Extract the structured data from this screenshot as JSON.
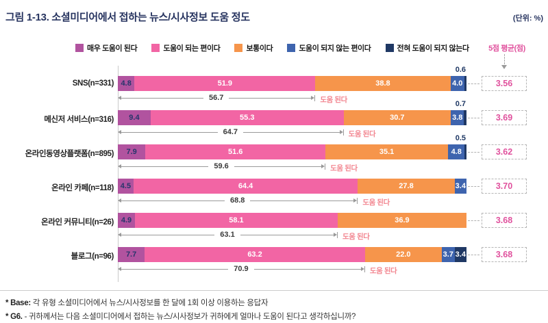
{
  "title": "그림 1-13. 소셜미디어에서 접하는 뉴스/시사정보 도움 정도",
  "unit_label": "(단위: %)",
  "avg_header": "5점 평균(점)",
  "helped_label": "도움 된다",
  "colors": {
    "very_helpful": "#B1539F",
    "helpful": "#F265A4",
    "neutral": "#F6954B",
    "not_helpful": "#3E64AE",
    "not_at_all": "#1F3864",
    "avg_text": "#E0519D",
    "title_navy": "#26335F",
    "helped_label": "#F2858F"
  },
  "legend": [
    {
      "label": "매우 도움이 된다",
      "color": "#B1539F"
    },
    {
      "label": "도움이 되는 편이다",
      "color": "#F265A4"
    },
    {
      "label": "보통이다",
      "color": "#F6954B"
    },
    {
      "label": "도움이 되지 않는 편이다",
      "color": "#3E64AE"
    },
    {
      "label": "전혀 도움이 되지 않는다",
      "color": "#1F3864"
    }
  ],
  "chart_data": {
    "type": "bar",
    "orientation": "horizontal",
    "stacked": true,
    "unit": "%",
    "series_names": [
      "매우 도움이 된다",
      "도움이 되는 편이다",
      "보통이다",
      "도움이 되지 않는 편이다",
      "전혀 도움이 되지 않는다"
    ],
    "categories": [
      "SNS(n=331)",
      "메신저 서비스(n=316)",
      "온라인동영상플랫폼(n=895)",
      "온라인 카페(n=118)",
      "온라인 커뮤니티(n=26)",
      "블로그(n=96)"
    ],
    "rows": [
      {
        "category": "SNS(n=331)",
        "values": [
          4.8,
          51.9,
          38.8,
          4.0,
          0.6
        ],
        "labels": [
          "4.8",
          "51.9",
          "38.8",
          "4.0",
          "0.6"
        ],
        "top_label": "0.6",
        "helped_sum": "56.7",
        "avg": "3.56"
      },
      {
        "category": "메신저 서비스(n=316)",
        "values": [
          9.4,
          55.3,
          30.7,
          3.8,
          0.7
        ],
        "labels": [
          "9.4",
          "55.3",
          "30.7",
          "3.8",
          "0.7"
        ],
        "top_label": "0.7",
        "helped_sum": "64.7",
        "avg": "3.69"
      },
      {
        "category": "온라인동영상플랫폼(n=895)",
        "values": [
          7.9,
          51.6,
          35.1,
          4.8,
          0.5
        ],
        "labels": [
          "7.9",
          "51.6",
          "35.1",
          "4.8",
          "0.5"
        ],
        "top_label": "0.5",
        "helped_sum": "59.6",
        "avg": "3.62"
      },
      {
        "category": "온라인 카페(n=118)",
        "values": [
          4.5,
          64.4,
          27.8,
          3.4,
          0
        ],
        "labels": [
          "4.5",
          "64.4",
          "27.8",
          "3.4",
          ""
        ],
        "top_label": "",
        "helped_sum": "68.8",
        "avg": "3.70"
      },
      {
        "category": "온라인 커뮤니티(n=26)",
        "values": [
          4.9,
          58.1,
          36.9,
          0,
          0
        ],
        "labels": [
          "4.9",
          "58.1",
          "36.9",
          "",
          ""
        ],
        "top_label": "",
        "helped_sum": "63.1",
        "avg": "3.68"
      },
      {
        "category": "블로그(n=96)",
        "values": [
          7.7,
          63.2,
          22.0,
          3.7,
          3.4
        ],
        "labels": [
          "7.7",
          "63.2",
          "22.0",
          "3.7",
          "3.4"
        ],
        "top_label": "",
        "helped_sum": "70.9",
        "avg": "3.68"
      }
    ],
    "legend_position": "top",
    "grid": false
  },
  "footnotes": [
    {
      "prefix": "* Base:",
      "text": " 각 유형 소셜미디어에서 뉴스/시사정보를 한 달에 1회 이상 이용하는 응답자"
    },
    {
      "prefix": "* G6.",
      "text": " - 귀하께서는 다음 소셜미디어에서 접하는 뉴스/시사정보가 귀하에게 얼마나 도움이 된다고 생각하십니까?"
    }
  ]
}
